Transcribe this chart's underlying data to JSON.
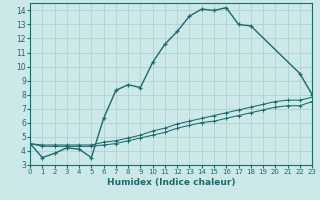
{
  "title": "",
  "xlabel": "Humidex (Indice chaleur)",
  "xlim": [
    0,
    23
  ],
  "ylim": [
    3,
    14.5
  ],
  "yticks": [
    3,
    4,
    5,
    6,
    7,
    8,
    9,
    10,
    11,
    12,
    13,
    14
  ],
  "xticks": [
    0,
    1,
    2,
    3,
    4,
    5,
    6,
    7,
    8,
    9,
    10,
    11,
    12,
    13,
    14,
    15,
    16,
    17,
    18,
    19,
    20,
    21,
    22,
    23
  ],
  "bg_color": "#cce8e8",
  "line_color": "#1a6b6b",
  "grid_color": "#aacece",
  "curve1_x": [
    0,
    1,
    2,
    3,
    4,
    5,
    6,
    7,
    8,
    9,
    10,
    11,
    12,
    13,
    14,
    15,
    16,
    17,
    18,
    22,
    23
  ],
  "curve1_y": [
    4.5,
    3.5,
    3.8,
    4.2,
    4.1,
    3.5,
    6.3,
    8.3,
    8.7,
    8.5,
    10.3,
    11.6,
    12.5,
    13.6,
    14.1,
    14.0,
    14.2,
    13.0,
    12.9,
    9.5,
    8.0
  ],
  "curve2_x": [
    0,
    1,
    2,
    3,
    4,
    5,
    6,
    7,
    8,
    9,
    10,
    11,
    12,
    13,
    14,
    15,
    16,
    17,
    18,
    19,
    20,
    21,
    22,
    23
  ],
  "curve2_y": [
    4.5,
    4.4,
    4.4,
    4.4,
    4.4,
    4.4,
    4.6,
    4.7,
    4.9,
    5.1,
    5.4,
    5.6,
    5.9,
    6.1,
    6.3,
    6.5,
    6.7,
    6.9,
    7.1,
    7.3,
    7.5,
    7.6,
    7.6,
    7.8
  ],
  "curve3_x": [
    0,
    1,
    2,
    3,
    4,
    5,
    6,
    7,
    8,
    9,
    10,
    11,
    12,
    13,
    14,
    15,
    16,
    17,
    18,
    19,
    20,
    21,
    22,
    23
  ],
  "curve3_y": [
    4.5,
    4.3,
    4.3,
    4.3,
    4.3,
    4.3,
    4.4,
    4.5,
    4.7,
    4.9,
    5.1,
    5.3,
    5.6,
    5.8,
    6.0,
    6.1,
    6.3,
    6.5,
    6.7,
    6.9,
    7.1,
    7.2,
    7.2,
    7.5
  ]
}
